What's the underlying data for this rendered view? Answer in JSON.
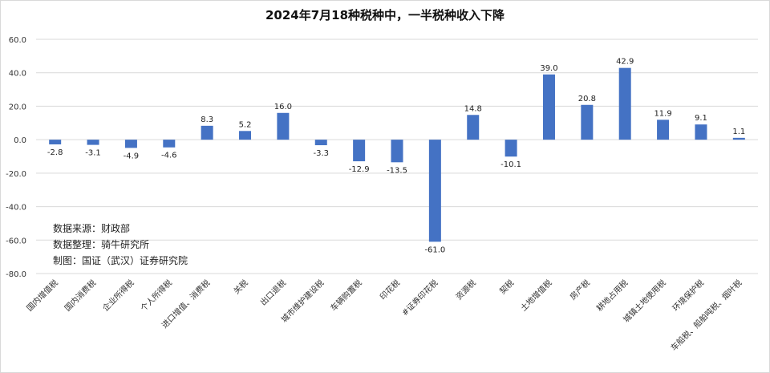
{
  "chart_data": {
    "type": "bar",
    "title": "2024年7月18种税种中，一半税种收入下降",
    "categories": [
      "国内增值税",
      "国内消费税",
      "企业所得税",
      "个人所得税",
      "进口增值、消费税",
      "关税",
      "出口退税",
      "城市维护建设税",
      "车辆购置税",
      "印花税",
      "#证券印花税",
      "资源税",
      "契税",
      "土地增值税",
      "房产税",
      "耕地占用税",
      "城镇土地使用税",
      "环境保护税",
      "车船税、船舶吨税、烟叶税"
    ],
    "values": [
      -2.8,
      -3.1,
      -4.9,
      -4.6,
      8.3,
      5.2,
      16.0,
      -3.3,
      -12.9,
      -13.5,
      -61.0,
      14.8,
      -10.1,
      39.0,
      20.8,
      42.9,
      11.9,
      9.1,
      1.1
    ],
    "data_labels": [
      "-2.8",
      "-3.1",
      "-4.9",
      "-4.6",
      "8.3",
      "5.2",
      "16.0",
      "-3.3",
      "-12.9",
      "-13.5",
      "-61.0",
      "14.8",
      "-10.1",
      "39.0",
      "20.8",
      "42.9",
      "11.9",
      "9.1",
      "1.1"
    ],
    "y_ticks": [
      "60.0",
      "40.0",
      "20.0",
      "0.0",
      "-20.0",
      "-40.0",
      "-60.0",
      "-80.0"
    ],
    "ylim": [
      -80,
      60
    ],
    "bar_color": "#4472c4",
    "grid": true
  },
  "source_notes": [
    "数据来源：财政部",
    "数据整理：骑牛研究所",
    "制图：国证（武汉）证券研究院"
  ]
}
